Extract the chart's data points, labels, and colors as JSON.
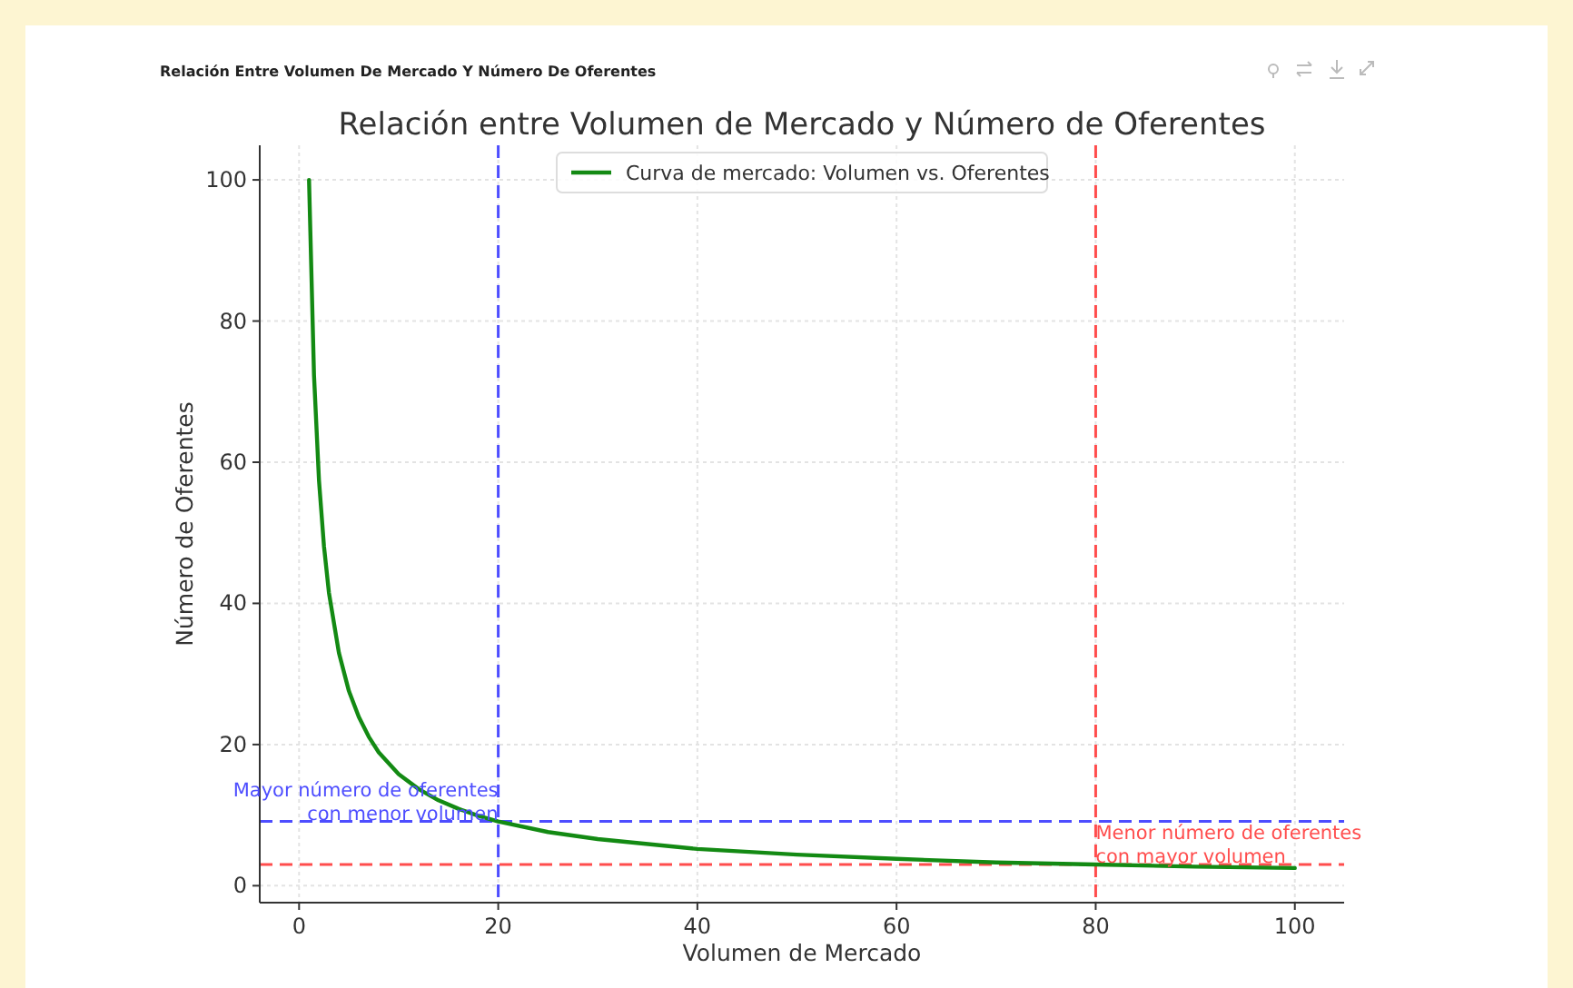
{
  "chart_data": {
    "type": "line",
    "title": "Relación entre Volumen de Mercado y Número de Oferentes",
    "subtitle": "Relación Entre Volumen De Mercado Y Número De Oferentes",
    "xlabel": "Volumen de Mercado",
    "ylabel": "Número de Oferentes",
    "x": [
      1,
      1.5,
      2,
      2.5,
      3,
      4,
      5,
      6,
      7,
      8,
      10,
      12,
      14,
      16,
      18,
      20,
      25,
      30,
      40,
      50,
      60,
      70,
      80,
      90,
      100
    ],
    "series": [
      {
        "name": "Curva de mercado: Volumen vs. Oferentes",
        "color": "#138a13",
        "values": [
          100,
          72.3,
          57.4,
          48.1,
          41.5,
          33.0,
          27.6,
          23.9,
          21.1,
          18.9,
          15.8,
          13.7,
          12.1,
          10.9,
          9.9,
          9.1,
          7.6,
          6.6,
          5.2,
          4.4,
          3.8,
          3.3,
          3.0,
          2.7,
          2.5
        ]
      }
    ],
    "xlim": [
      -3.95,
      104.95
    ],
    "xticks": [
      0,
      20,
      40,
      60,
      80,
      100
    ],
    "ylim": [
      -2.4,
      104.9
    ],
    "yticks": [
      0,
      20,
      40,
      60,
      80,
      100
    ],
    "ref_lines": [
      {
        "axis": "x",
        "value": 20,
        "color": "#4d4dff",
        "line_style": "dashed"
      },
      {
        "axis": "y",
        "value": 9.1,
        "color": "#4d4dff",
        "line_style": "dashed"
      },
      {
        "axis": "x",
        "value": 80,
        "color": "#ff4d4d",
        "line_style": "dashed"
      },
      {
        "axis": "y",
        "value": 3.0,
        "color": "#ff4d4d",
        "line_style": "dashed"
      }
    ],
    "annotations": [
      {
        "text": "Mayor número de oferentes\ncon menor volumen",
        "x": 20,
        "y": 9.1
      },
      {
        "text": "Menor número de oferentes\ncon mayor volumen",
        "x": 80,
        "y": 3.0
      }
    ],
    "grid": true,
    "legend": "top",
    "marker": "none",
    "line_style": "solid"
  }
}
